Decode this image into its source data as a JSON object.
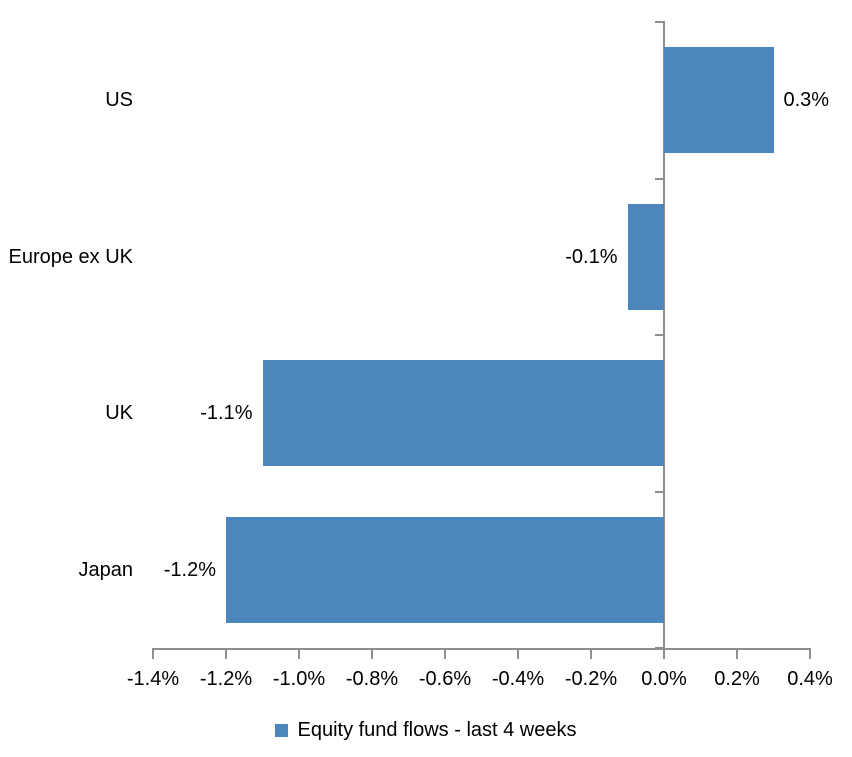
{
  "chart_data": {
    "type": "bar",
    "orientation": "horizontal",
    "categories": [
      "US",
      "Europe ex UK",
      "UK",
      "Japan"
    ],
    "values": [
      0.3,
      -0.1,
      -1.1,
      -1.2
    ],
    "data_labels": [
      "0.3%",
      "-0.1%",
      "-1.1%",
      "-1.2%"
    ],
    "series_name": "Equity fund flows - last 4 weeks",
    "x_tick_labels": [
      "-1.4%",
      "-1.2%",
      "-1.0%",
      "-0.8%",
      "-0.6%",
      "-0.4%",
      "-0.2%",
      "0.0%",
      "0.2%",
      "0.4%"
    ],
    "xlim": [
      -1.4,
      0.4
    ],
    "grid": false,
    "legend_position": "bottom",
    "data_label_position": "outside-end",
    "colors": {
      "bar": "#4D86BD",
      "axis": "#8E8E8E",
      "text": "#000000",
      "background": "#FFFFFF"
    }
  }
}
